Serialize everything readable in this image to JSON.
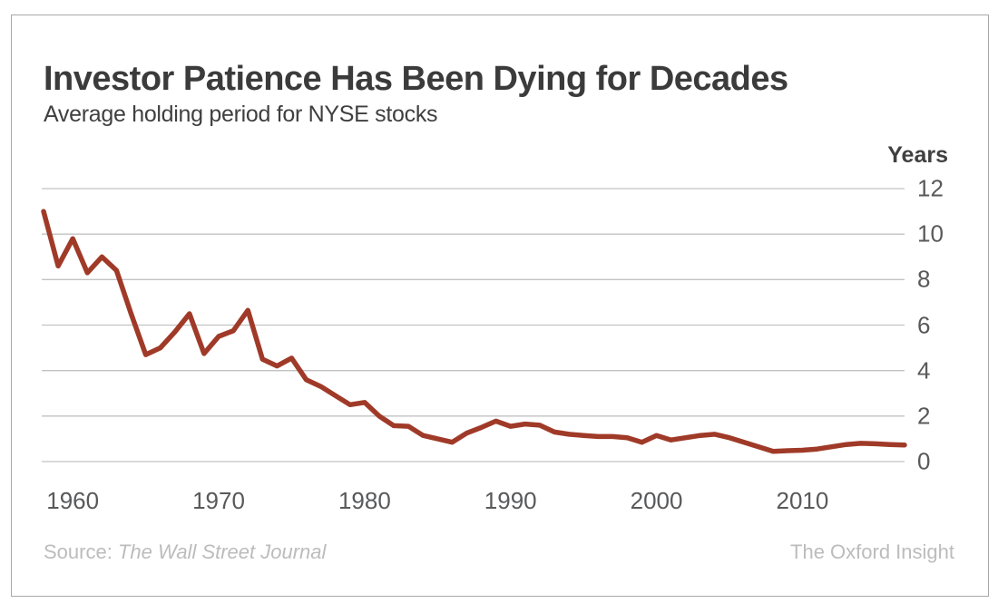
{
  "header": {
    "title": "Investor Patience Has Been Dying for Decades",
    "subtitle": "Average holding period for NYSE stocks"
  },
  "footer": {
    "source_prefix": "Source: ",
    "source_name": "The Wall Street Journal",
    "attribution": "The Oxford Insight"
  },
  "colors": {
    "line": "#a03a28",
    "gridline": "#c2c2c2",
    "tick_text": "#58595b",
    "title_text": "#3b3b3b",
    "footer_text": "#bcbcbc",
    "frame_border": "#a8a8a8"
  },
  "chart_data": {
    "type": "line",
    "title": "Investor Patience Has Been Dying for Decades",
    "subtitle": "Average holding period for NYSE stocks",
    "series_name": "Average holding period for NYSE stocks",
    "xlabel": "",
    "ylabel": "Years",
    "ylim": [
      0,
      12
    ],
    "xlim": [
      1958,
      2017
    ],
    "grid": "horizontal",
    "legend": "none",
    "y_ticks": [
      12,
      10,
      8,
      6,
      4,
      2,
      0
    ],
    "x_ticks": [
      1960,
      1970,
      1980,
      1990,
      2000,
      2010
    ],
    "x": [
      1958,
      1959,
      1960,
      1961,
      1962,
      1963,
      1964,
      1965,
      1966,
      1967,
      1968,
      1969,
      1970,
      1971,
      1972,
      1973,
      1974,
      1975,
      1976,
      1977,
      1978,
      1979,
      1980,
      1981,
      1982,
      1983,
      1984,
      1985,
      1986,
      1987,
      1988,
      1989,
      1990,
      1991,
      1992,
      1993,
      1994,
      1995,
      1996,
      1997,
      1998,
      1999,
      2000,
      2001,
      2002,
      2003,
      2004,
      2005,
      2006,
      2007,
      2008,
      2009,
      2010,
      2011,
      2012,
      2013,
      2014,
      2015,
      2016,
      2017
    ],
    "values": [
      11.0,
      8.6,
      9.8,
      8.3,
      9.0,
      8.4,
      6.5,
      4.7,
      5.0,
      5.7,
      6.5,
      4.75,
      5.5,
      5.75,
      6.65,
      4.5,
      4.2,
      4.55,
      3.6,
      3.3,
      2.9,
      2.5,
      2.6,
      2.0,
      1.58,
      1.55,
      1.15,
      1.0,
      0.85,
      1.25,
      1.5,
      1.78,
      1.55,
      1.65,
      1.6,
      1.3,
      1.2,
      1.15,
      1.1,
      1.1,
      1.05,
      0.85,
      1.15,
      0.95,
      1.05,
      1.15,
      1.2,
      1.05,
      0.85,
      0.65,
      0.45,
      0.48,
      0.5,
      0.55,
      0.65,
      0.75,
      0.8,
      0.78,
      0.75,
      0.73
    ]
  }
}
